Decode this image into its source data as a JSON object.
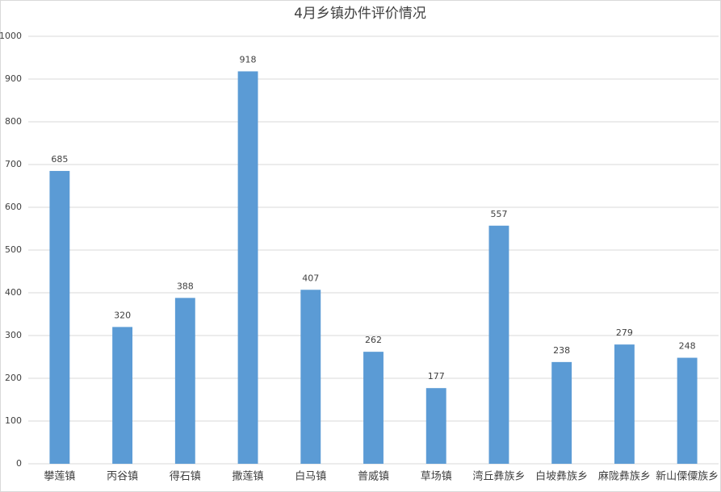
{
  "chart_data": {
    "type": "bar",
    "title": "4月乡镇办件评价情况",
    "categories": [
      "攀莲镇",
      "丙谷镇",
      "得石镇",
      "撒莲镇",
      "白马镇",
      "普威镇",
      "草场镇",
      "湾丘彝族乡",
      "白坡彝族乡",
      "麻陇彝族乡",
      "新山傈僳族乡"
    ],
    "values": [
      685,
      320,
      388,
      918,
      407,
      262,
      177,
      557,
      238,
      279,
      248
    ],
    "color": "#5b9bd5",
    "ylim": [
      0,
      1000
    ],
    "yticks": [
      0,
      100,
      200,
      300,
      400,
      500,
      600,
      700,
      800,
      900,
      1000
    ],
    "grid": true
  }
}
